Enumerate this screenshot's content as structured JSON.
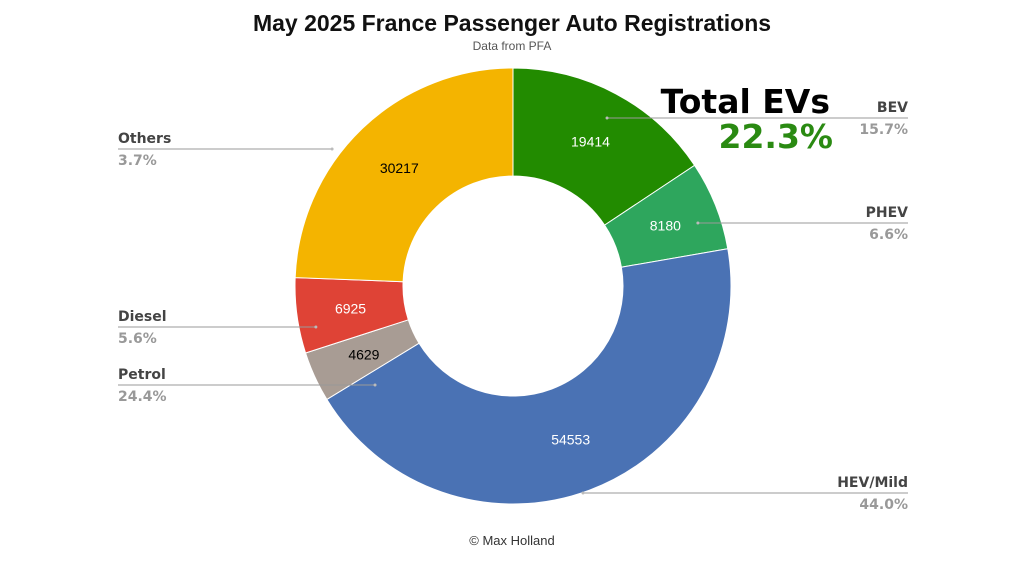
{
  "chart_data": {
    "type": "pie",
    "donut": true,
    "title": "May 2025 France Passenger Auto Registrations",
    "subtitle": "Data from PFA",
    "credit": "© Max Holland",
    "annotation": {
      "title": "Total EVs",
      "value": "22.3%",
      "color": "#2a8a12"
    },
    "slices": [
      {
        "name": "BEV",
        "value": 19414,
        "percent": "15.7%",
        "color": "#228B00",
        "text_color": "#ffffff",
        "side": "right"
      },
      {
        "name": "PHEV",
        "value": 8180,
        "percent": "6.6%",
        "color": "#2EA65D",
        "text_color": "#ffffff",
        "side": "right"
      },
      {
        "name": "HEV/Mild",
        "value": 54553,
        "percent": "44.0%",
        "color": "#4A72B4",
        "text_color": "#ffffff",
        "side": "right"
      },
      {
        "name": "Others",
        "value": 4629,
        "percent": "3.7%",
        "color": "#A89C94",
        "text_color": "#000000",
        "side": "left"
      },
      {
        "name": "Diesel",
        "value": 6925,
        "percent": "5.6%",
        "color": "#DF4336",
        "text_color": "#ffffff",
        "side": "left"
      },
      {
        "name": "Petrol",
        "value": 30217,
        "percent": "24.4%",
        "color": "#F4B400",
        "text_color": "#000000",
        "side": "left"
      }
    ]
  }
}
